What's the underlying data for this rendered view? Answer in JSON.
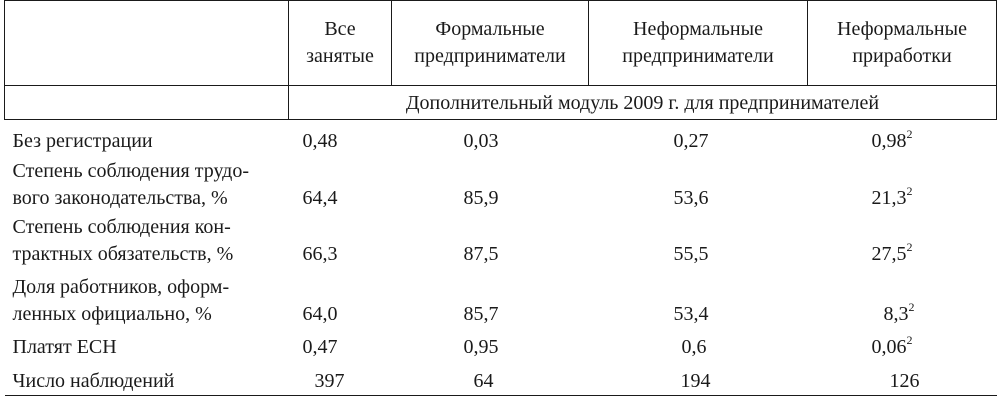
{
  "table": {
    "headers": [
      "",
      "Все занятые",
      "Формальные предприниматели",
      "Неформальные предприниматели",
      "Неформальные приработки"
    ],
    "header_lines": {
      "all": [
        "Все",
        "занятые"
      ],
      "formal": [
        "Формальные",
        "предприниматели"
      ],
      "informal": [
        "Неформальные",
        "предприниматели"
      ],
      "side": [
        "Неформальные",
        "приработки"
      ]
    },
    "module_title": "Дополнительный модуль 2009 г. для предпринимателей",
    "rows": [
      {
        "label_lines": [
          "Без регистрации"
        ],
        "all": "0,48",
        "formal": "0,03",
        "informal": "0,27",
        "side": "0,98",
        "side_note": "2"
      },
      {
        "label_lines": [
          "Степень соблюдения трудо-",
          "вого законодательства, %"
        ],
        "all": "64,4",
        "formal": "85,9",
        "informal": "53,6",
        "side": "21,3",
        "side_note": "2"
      },
      {
        "label_lines": [
          "Степень соблюдения кон-",
          "трактных обязательств, %"
        ],
        "all": "66,3",
        "formal": "87,5",
        "informal": "55,5",
        "side": "27,5",
        "side_note": "2"
      },
      {
        "label_lines": [
          "Доля работников, оформ-",
          "ленных официально, %"
        ],
        "all": "64,0",
        "formal": "85,7",
        "informal": "53,4",
        "side": "8,3",
        "side_note": "2"
      },
      {
        "label_lines": [
          "Платят ЕСН"
        ],
        "all": "0,47",
        "formal": "0,95",
        "informal": "0,6",
        "side": "0,06",
        "side_note": "2"
      },
      {
        "label_lines": [
          "Число наблюдений"
        ],
        "all": "397",
        "formal": "64",
        "informal": "194",
        "side": "126",
        "side_note": ""
      }
    ]
  }
}
